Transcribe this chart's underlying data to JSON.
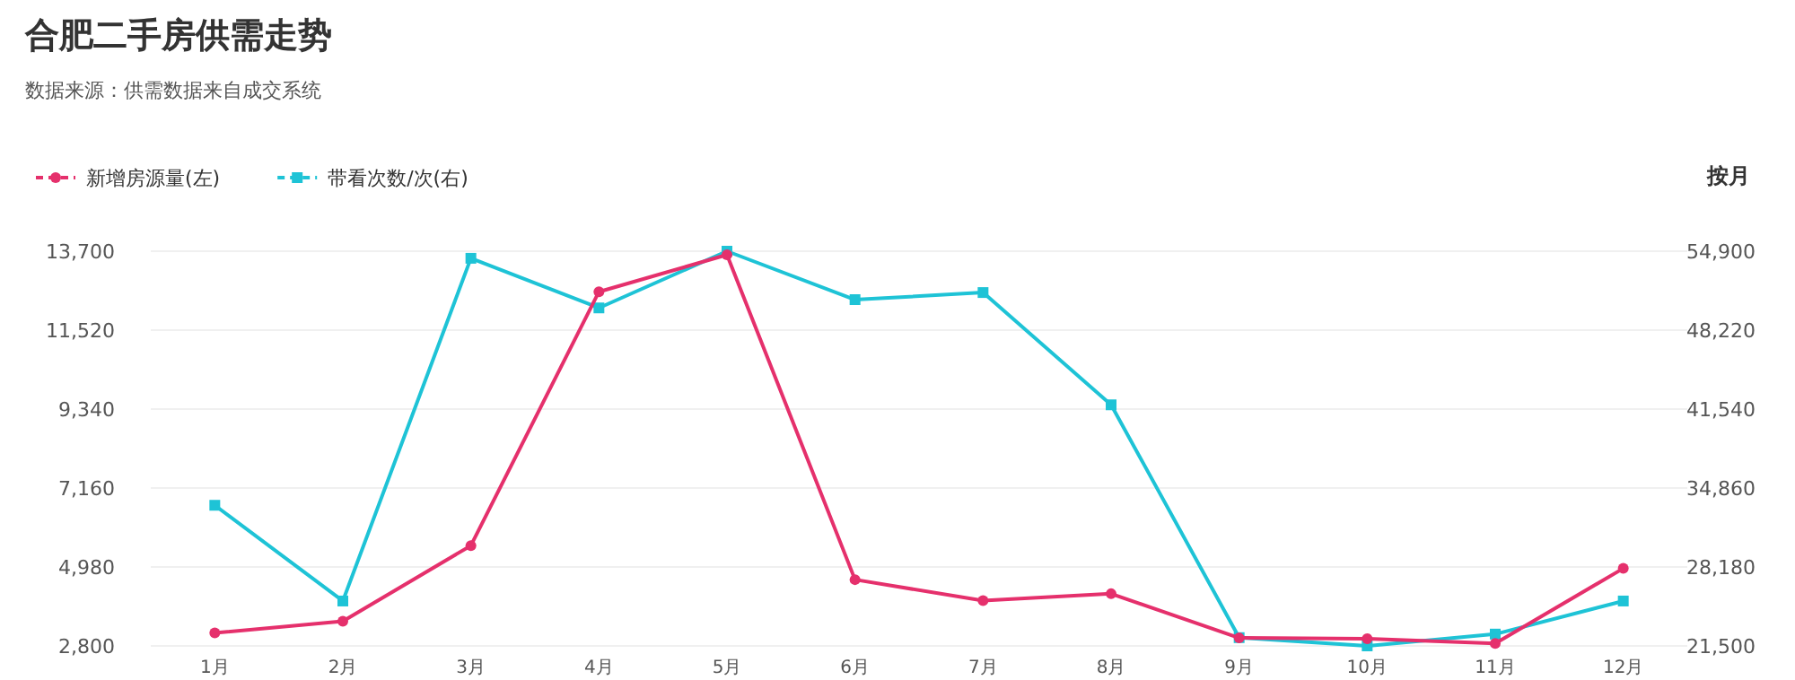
{
  "chart_data": {
    "type": "line",
    "title": "合肥二手房供需走势",
    "subtitle": "数据来源：供需数据来自成交系统",
    "annotations": [
      "按月"
    ],
    "categories": [
      "1月",
      "2月",
      "3月",
      "4月",
      "5月",
      "6月",
      "7月",
      "8月",
      "9月",
      "10月",
      "11月",
      "12月"
    ],
    "series": [
      {
        "name": "新增房源量(左)",
        "color": "#e5306c",
        "marker": "circle",
        "values": [
          3160,
          3480,
          5570,
          12580,
          13600,
          4630,
          4050,
          4240,
          3020,
          3000,
          2870,
          4940
        ]
      },
      {
        "name": "带看次数/次(右)",
        "color": "#1ec3d6",
        "marker": "square",
        "axis": "y2",
        "values": [
          33400,
          25300,
          54300,
          50100,
          54900,
          50800,
          51400,
          41900,
          22200,
          21500,
          22500,
          25300
        ]
      }
    ],
    "ylim": [
      2800,
      13700
    ],
    "yticks": [
      {
        "value": 2800,
        "label": "2,800"
      },
      {
        "value": 4980,
        "label": "4,980"
      },
      {
        "value": 7160,
        "label": "7,160"
      },
      {
        "value": 9340,
        "label": "9,340"
      },
      {
        "value": 11520,
        "label": "11,520"
      },
      {
        "value": 13700,
        "label": "13,700"
      }
    ],
    "y2lim": [
      21500,
      54900
    ],
    "y2ticks": [
      {
        "value": 21500,
        "label": "21,500"
      },
      {
        "value": 28180,
        "label": "28,180"
      },
      {
        "value": 34860,
        "label": "34,860"
      },
      {
        "value": 41540,
        "label": "41,540"
      },
      {
        "value": 48220,
        "label": "48,220"
      },
      {
        "value": 54900,
        "label": "54,900"
      }
    ],
    "grid": "y",
    "legend": "top left"
  }
}
